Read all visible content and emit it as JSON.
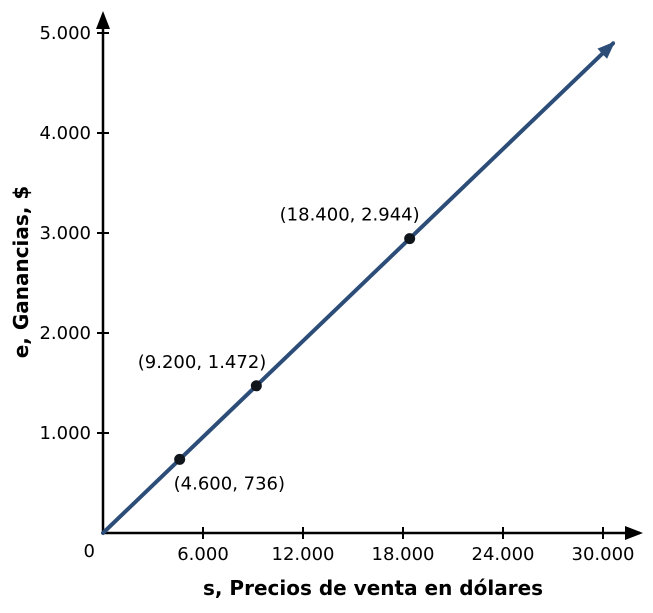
{
  "chart_data": {
    "type": "line",
    "title": "",
    "xlabel": "s, Precios de venta en dólares",
    "ylabel": "e, Ganancias, $",
    "origin_label": "0",
    "x_ticks": [
      6000,
      12000,
      18000,
      24000,
      30000
    ],
    "x_tick_labels": [
      "6.000",
      "12.000",
      "18.000",
      "24.000",
      "30.000"
    ],
    "y_ticks": [
      1000,
      2000,
      3000,
      4000,
      5000
    ],
    "y_tick_labels": [
      "1.000",
      "2.000",
      "3.000",
      "4.000",
      "5.000"
    ],
    "xlim": [
      0,
      32000
    ],
    "ylim": [
      0,
      5200
    ],
    "grid": false,
    "points": [
      {
        "x": 4600,
        "y": 736,
        "label": "(4.600, 736)"
      },
      {
        "x": 9200,
        "y": 1472,
        "label": "(9.200, 1.472)"
      },
      {
        "x": 18400,
        "y": 2944,
        "label": "(18.400, 2.944)"
      }
    ],
    "line": {
      "x_start": 0,
      "y_start": 0,
      "x_end": 30600
    },
    "colors": {
      "line": "#2d4d79",
      "point": "#10151c",
      "axis": "#000000",
      "text": "#000000"
    }
  }
}
